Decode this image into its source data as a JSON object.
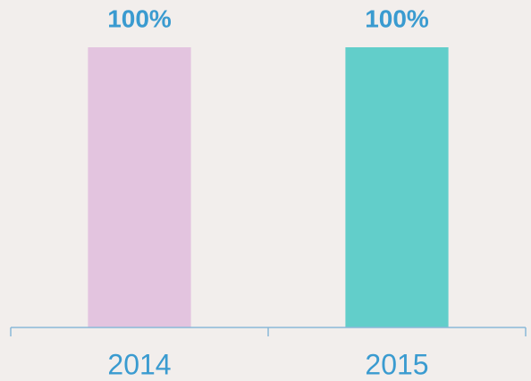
{
  "chart_data": {
    "type": "bar",
    "categories": [
      "2014",
      "2015"
    ],
    "values": [
      100,
      100
    ],
    "value_labels": [
      "100%",
      "100%"
    ],
    "colors": [
      "#e3c4df",
      "#62ceca"
    ]
  }
}
